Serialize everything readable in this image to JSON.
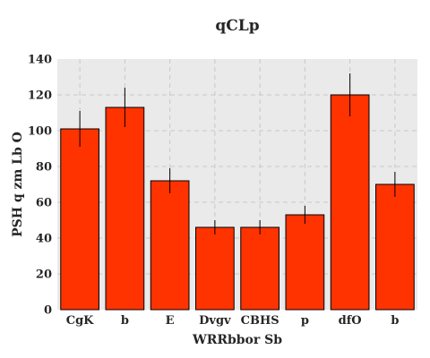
{
  "chart_data": {
    "type": "bar",
    "title": "qCLp",
    "xlabel": "WRRbbor Sb",
    "ylabel": "PSH q zm Lb O",
    "categories": [
      "CgK",
      "b",
      "E",
      "Dvgv",
      "CBHS",
      "p",
      "dfO",
      "b"
    ],
    "values": [
      101,
      113,
      72,
      46,
      46,
      53,
      120,
      70
    ],
    "errors": [
      10,
      11,
      7,
      4,
      4,
      5,
      12,
      7
    ],
    "ylim": [
      0,
      140
    ],
    "yticks": [
      "0",
      "20",
      "40",
      "60",
      "80",
      "100",
      "120",
      "140"
    ],
    "grid": true,
    "legend": "none",
    "colors": {
      "bar": "#ff3300",
      "bar_edge": "#000000",
      "error_bar": "#000000",
      "plot_background": "#eaeaea",
      "grid": "#c8c8c8"
    }
  }
}
